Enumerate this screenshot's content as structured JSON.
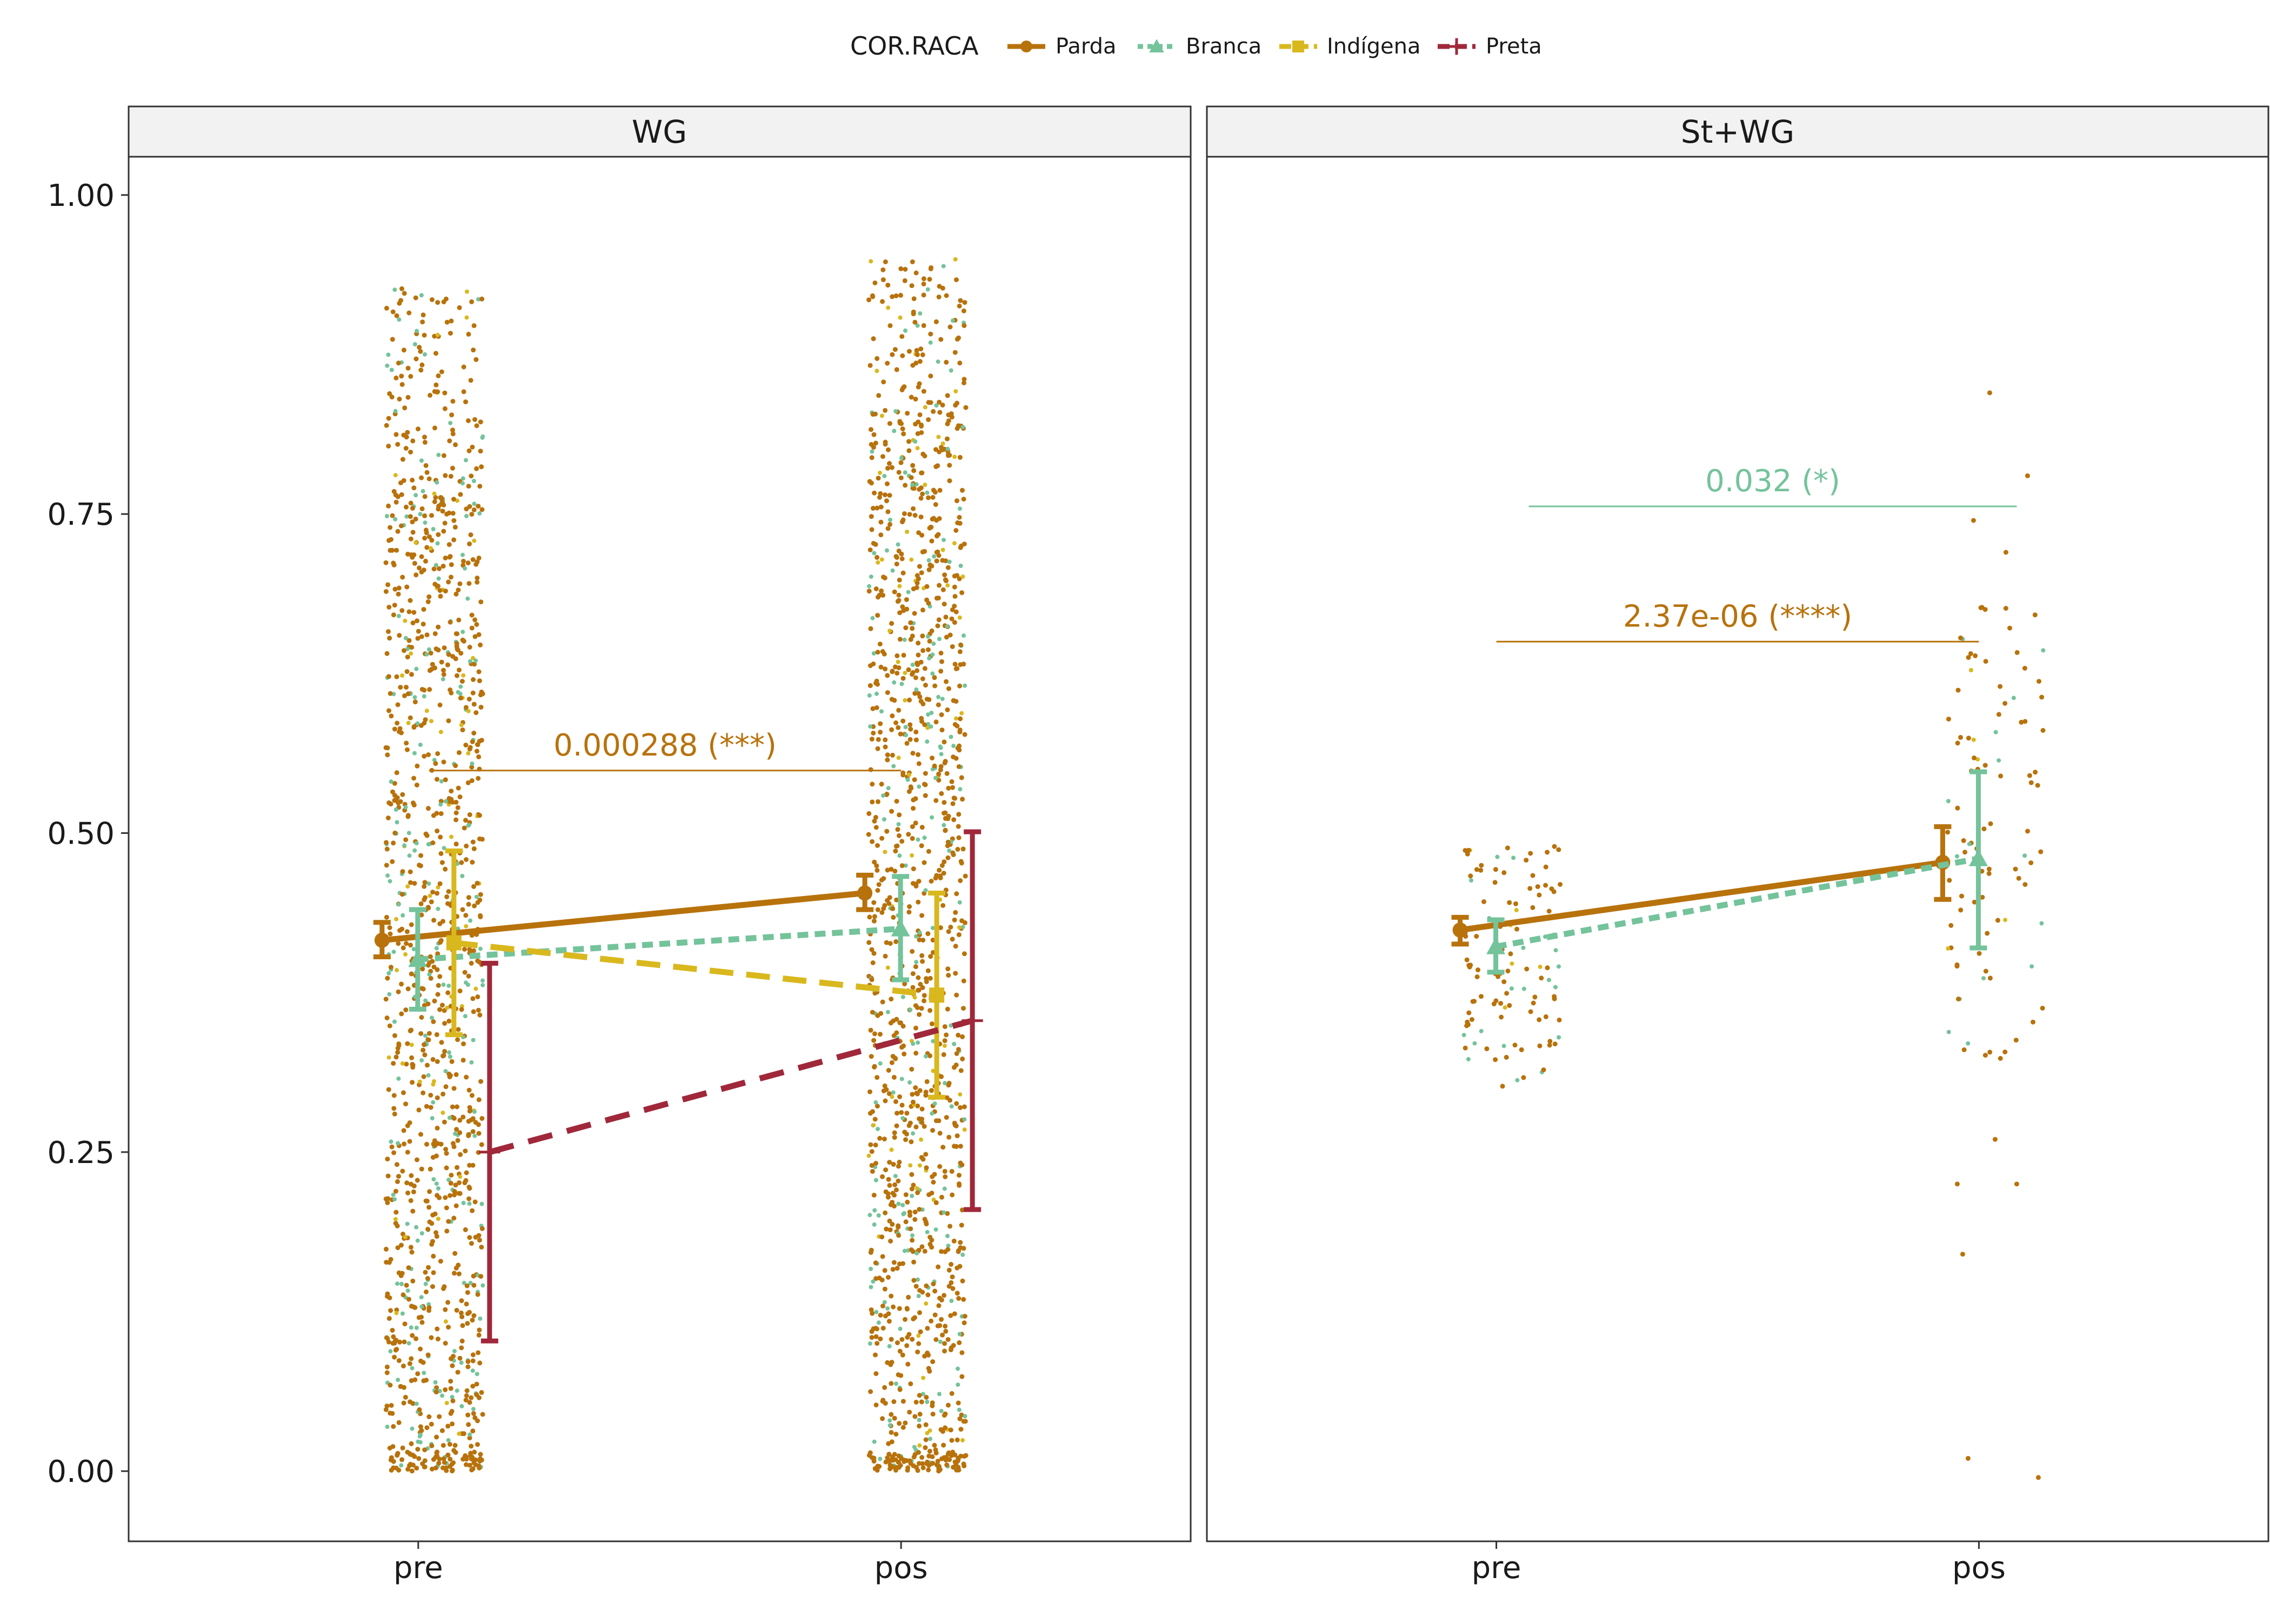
{
  "chart_data": {
    "type": "line",
    "legend": {
      "title": "COR.RACA",
      "position": "top",
      "entries": [
        {
          "key": "Parda",
          "label": "Parda",
          "color": "#b8720c",
          "shape": "circle",
          "dash": "solid"
        },
        {
          "key": "Branca",
          "label": "Branca",
          "color": "#74c39b",
          "shape": "triangle",
          "dash": "dotted"
        },
        {
          "key": "Indigena",
          "label": "Indígena",
          "color": "#d9b81e",
          "shape": "square",
          "dash": "dashed"
        },
        {
          "key": "Preta",
          "label": "Preta",
          "color": "#a0283a",
          "shape": "cross",
          "dash": "longdash"
        }
      ]
    },
    "x_categories": [
      "pre",
      "pos"
    ],
    "ylim": [
      -0.055,
      1.03
    ],
    "y_ticks": [
      {
        "value": 0.0,
        "label": "0.00"
      },
      {
        "value": 0.25,
        "label": "0.25"
      },
      {
        "value": 0.5,
        "label": "0.50"
      },
      {
        "value": 0.75,
        "label": "0.75"
      },
      {
        "value": 1.0,
        "label": "1.00"
      }
    ],
    "grid": false,
    "panels": [
      {
        "strip": "WG",
        "series": [
          {
            "key": "Parda",
            "points": [
              {
                "x": "pre",
                "mean": 0.416,
                "lo": 0.403,
                "hi": 0.43
              },
              {
                "x": "pos",
                "mean": 0.453,
                "lo": 0.44,
                "hi": 0.467
              }
            ]
          },
          {
            "key": "Branca",
            "points": [
              {
                "x": "pre",
                "mean": 0.401,
                "lo": 0.362,
                "hi": 0.44
              },
              {
                "x": "pos",
                "mean": 0.425,
                "lo": 0.385,
                "hi": 0.466
              }
            ]
          },
          {
            "key": "Indigena",
            "points": [
              {
                "x": "pre",
                "mean": 0.414,
                "lo": 0.342,
                "hi": 0.486
              },
              {
                "x": "pos",
                "mean": 0.373,
                "lo": 0.293,
                "hi": 0.453
              }
            ]
          },
          {
            "key": "Preta",
            "points": [
              {
                "x": "pre",
                "mean": 0.25,
                "lo": 0.102,
                "hi": 0.398
              },
              {
                "x": "pos",
                "mean": 0.353,
                "lo": 0.205,
                "hi": 0.501
              }
            ]
          }
        ],
        "annotations": [
          {
            "label": "0.000288 (***)",
            "color_key": "Parda",
            "y": 0.549,
            "from": "pre",
            "to": "pos"
          }
        ]
      },
      {
        "strip": "St+WG",
        "series": [
          {
            "key": "Parda",
            "points": [
              {
                "x": "pre",
                "mean": 0.424,
                "lo": 0.413,
                "hi": 0.434
              },
              {
                "x": "pos",
                "mean": 0.477,
                "lo": 0.448,
                "hi": 0.505
              }
            ]
          },
          {
            "key": "Branca",
            "points": [
              {
                "x": "pre",
                "mean": 0.411,
                "lo": 0.391,
                "hi": 0.432
              },
              {
                "x": "pos",
                "mean": 0.48,
                "lo": 0.41,
                "hi": 0.548
              }
            ]
          }
        ],
        "annotations": [
          {
            "label": "2.37e-06 (****)",
            "color_key": "Parda",
            "y": 0.65,
            "from": "pre",
            "to": "pos"
          },
          {
            "label": "0.032 (*)",
            "color_key": "Branca",
            "y": 0.756,
            "from": "pre",
            "to": "pos"
          }
        ]
      }
    ]
  }
}
